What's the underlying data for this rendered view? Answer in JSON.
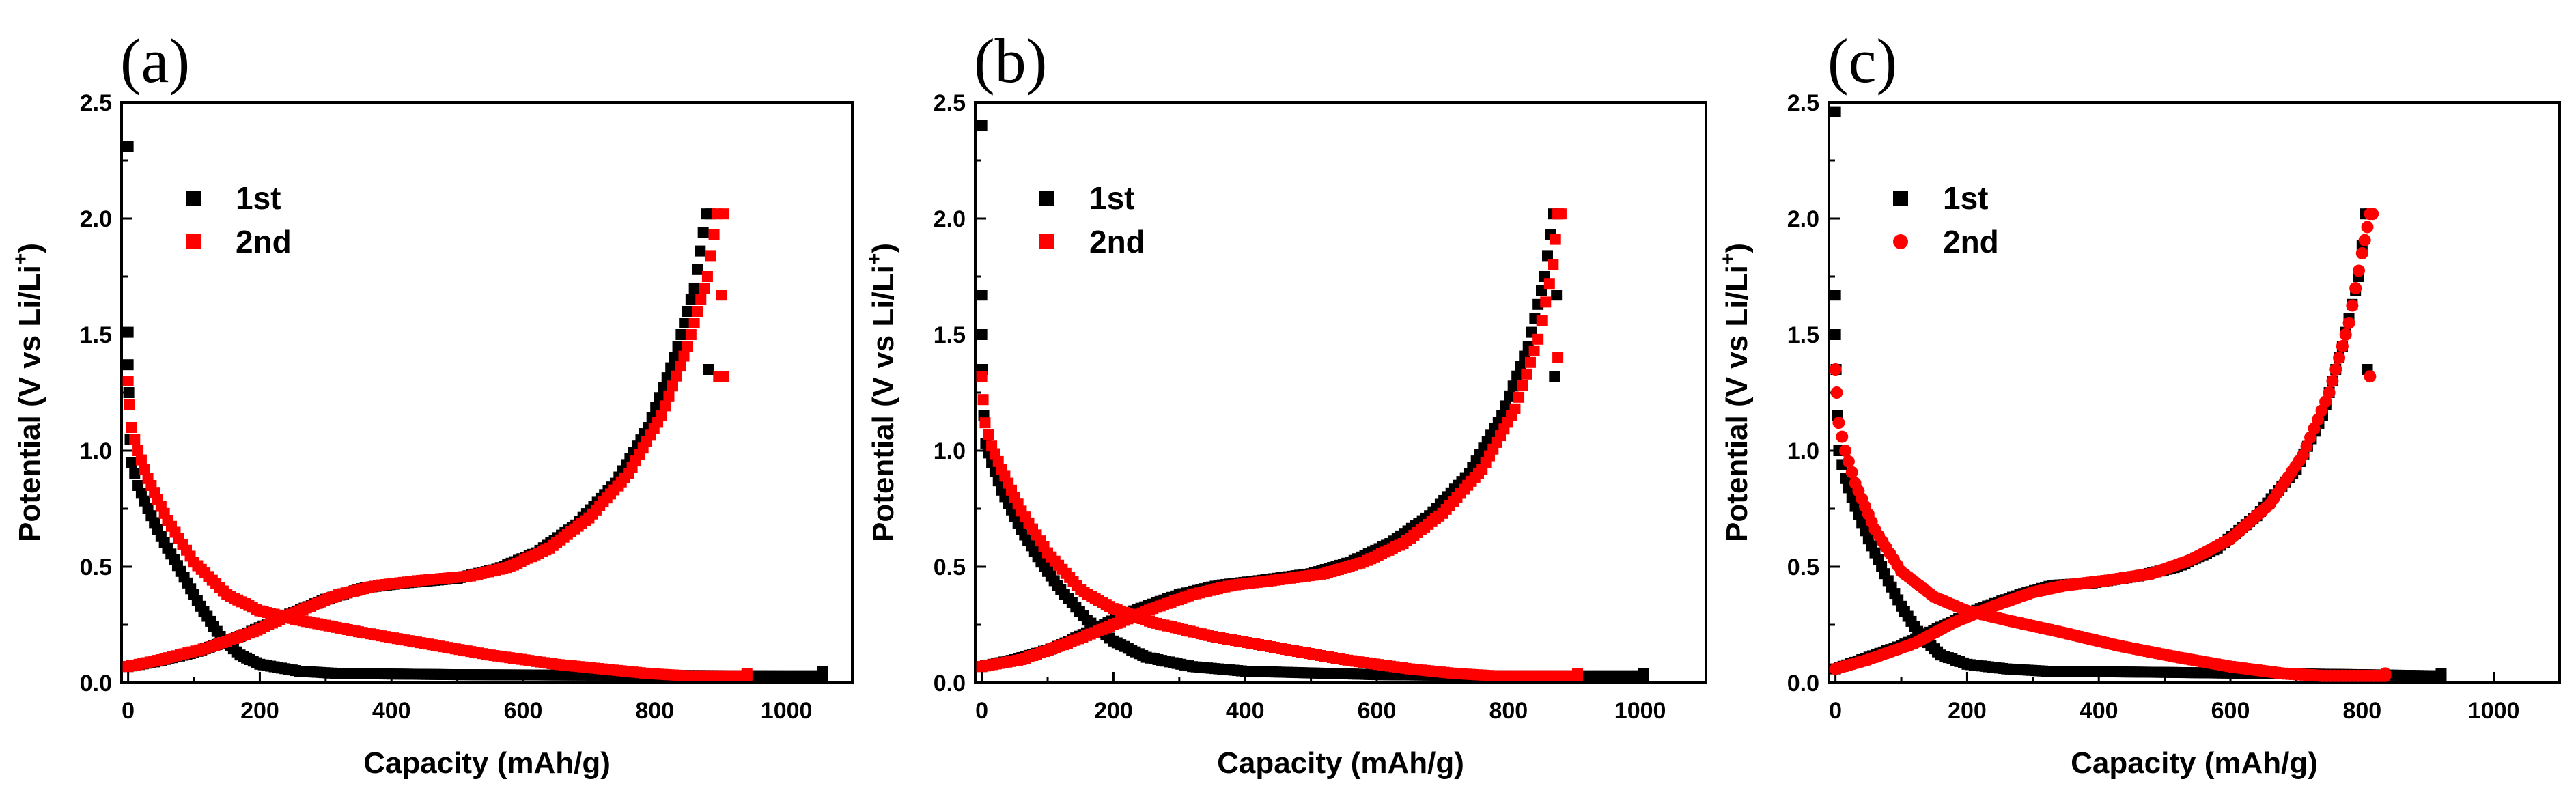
{
  "chart_data": [
    {
      "type": "scatter",
      "panel_label": "(a)",
      "xlabel": "Capacity (mAh/g)",
      "ylabel": {
        "main": "Potential (V vs Li/Li",
        "sup": "+",
        "close": ")"
      },
      "xlim": [
        -10,
        1100
      ],
      "ylim": [
        0,
        2.5
      ],
      "xticks": [
        "0",
        "200",
        "400",
        "600",
        "800",
        "1000"
      ],
      "yticks": [
        "0.0",
        "0.5",
        "1.0",
        "1.5",
        "2.0",
        "2.5"
      ],
      "legend_position": "top-left",
      "series": [
        {
          "name": "1st",
          "color": "#000000",
          "marker": "square",
          "discharge": [
            [
              0,
              2.31
            ],
            [
              0,
              1.51
            ],
            [
              0,
              1.37
            ],
            [
              1,
              1.25
            ],
            [
              3,
              1.05
            ],
            [
              5,
              0.95
            ],
            [
              15,
              0.85
            ],
            [
              30,
              0.75
            ],
            [
              50,
              0.63
            ],
            [
              80,
              0.48
            ],
            [
              110,
              0.33
            ],
            [
              140,
              0.2
            ],
            [
              170,
              0.12
            ],
            [
              200,
              0.08
            ],
            [
              260,
              0.05
            ],
            [
              320,
              0.04
            ],
            [
              500,
              0.035
            ],
            [
              800,
              0.032
            ],
            [
              1000,
              0.03
            ],
            [
              1055,
              0.03
            ],
            [
              1055,
              0.05
            ]
          ],
          "charge": [
            [
              0,
              0.07
            ],
            [
              40,
              0.09
            ],
            [
              100,
              0.13
            ],
            [
              170,
              0.2
            ],
            [
              240,
              0.29
            ],
            [
              300,
              0.36
            ],
            [
              360,
              0.41
            ],
            [
              420,
              0.43
            ],
            [
              500,
              0.45
            ],
            [
              560,
              0.49
            ],
            [
              620,
              0.56
            ],
            [
              680,
              0.68
            ],
            [
              740,
              0.86
            ],
            [
              790,
              1.1
            ],
            [
              830,
              1.4
            ],
            [
              860,
              1.7
            ],
            [
              878,
              2.02
            ],
            [
              882,
              1.35
            ],
            [
              885,
              2.02
            ]
          ]
        },
        {
          "name": "2nd",
          "color": "#ff0000",
          "marker": "square",
          "discharge": [
            [
              0,
              1.3
            ],
            [
              2,
              1.2
            ],
            [
              5,
              1.1
            ],
            [
              15,
              1.0
            ],
            [
              30,
              0.88
            ],
            [
              60,
              0.7
            ],
            [
              100,
              0.52
            ],
            [
              150,
              0.38
            ],
            [
              200,
              0.31
            ],
            [
              260,
              0.27
            ],
            [
              350,
              0.22
            ],
            [
              450,
              0.17
            ],
            [
              550,
              0.12
            ],
            [
              650,
              0.08
            ],
            [
              720,
              0.06
            ],
            [
              790,
              0.04
            ],
            [
              850,
              0.03
            ],
            [
              940,
              0.03
            ],
            [
              940,
              0.04
            ]
          ],
          "charge": [
            [
              0,
              0.07
            ],
            [
              50,
              0.1
            ],
            [
              120,
              0.15
            ],
            [
              190,
              0.22
            ],
            [
              260,
              0.31
            ],
            [
              320,
              0.38
            ],
            [
              380,
              0.42
            ],
            [
              440,
              0.44
            ],
            [
              520,
              0.46
            ],
            [
              580,
              0.5
            ],
            [
              640,
              0.58
            ],
            [
              700,
              0.71
            ],
            [
              760,
              0.9
            ],
            [
              810,
              1.15
            ],
            [
              850,
              1.45
            ],
            [
              880,
              1.75
            ],
            [
              895,
              2.02
            ],
            [
              897,
              1.32
            ],
            [
              905,
              2.02
            ],
            [
              905,
              1.32
            ]
          ]
        }
      ]
    },
    {
      "type": "scatter",
      "panel_label": "(b)",
      "xlabel": "Capacity (mAh/g)",
      "ylabel": {
        "main": "Potential (V vs Li/Li",
        "sup": "+",
        "close": ")"
      },
      "xlim": [
        -10,
        1100
      ],
      "ylim": [
        0,
        2.5
      ],
      "xticks": [
        "0",
        "200",
        "400",
        "600",
        "800",
        "1000"
      ],
      "yticks": [
        "0.0",
        "0.5",
        "1.0",
        "1.5",
        "2.0",
        "2.5"
      ],
      "legend_position": "top-left",
      "series": [
        {
          "name": "1st",
          "color": "#000000",
          "marker": "square",
          "discharge": [
            [
              0,
              2.4
            ],
            [
              0,
              1.67
            ],
            [
              0,
              1.5
            ],
            [
              1,
              1.35
            ],
            [
              3,
              1.15
            ],
            [
              6,
              1.03
            ],
            [
              15,
              0.95
            ],
            [
              30,
              0.83
            ],
            [
              60,
              0.66
            ],
            [
              90,
              0.52
            ],
            [
              120,
              0.4
            ],
            [
              160,
              0.27
            ],
            [
              200,
              0.18
            ],
            [
              250,
              0.11
            ],
            [
              320,
              0.07
            ],
            [
              400,
              0.05
            ],
            [
              600,
              0.035
            ],
            [
              800,
              0.03
            ],
            [
              1005,
              0.03
            ],
            [
              1005,
              0.04
            ]
          ],
          "charge": [
            [
              0,
              0.07
            ],
            [
              50,
              0.1
            ],
            [
              110,
              0.15
            ],
            [
              170,
              0.23
            ],
            [
              230,
              0.31
            ],
            [
              300,
              0.38
            ],
            [
              360,
              0.42
            ],
            [
              420,
              0.44
            ],
            [
              500,
              0.47
            ],
            [
              560,
              0.52
            ],
            [
              620,
              0.6
            ],
            [
              680,
              0.72
            ],
            [
              740,
              0.9
            ],
            [
              790,
              1.15
            ],
            [
              830,
              1.45
            ],
            [
              855,
              1.75
            ],
            [
              868,
              2.02
            ],
            [
              870,
              1.32
            ],
            [
              876,
              2.02
            ]
          ]
        },
        {
          "name": "2nd",
          "color": "#ff0000",
          "marker": "square",
          "discharge": [
            [
              0,
              1.32
            ],
            [
              2,
              1.22
            ],
            [
              5,
              1.12
            ],
            [
              15,
              1.02
            ],
            [
              30,
              0.92
            ],
            [
              60,
              0.74
            ],
            [
              100,
              0.56
            ],
            [
              150,
              0.4
            ],
            [
              200,
              0.32
            ],
            [
              260,
              0.26
            ],
            [
              350,
              0.2
            ],
            [
              450,
              0.15
            ],
            [
              550,
              0.1
            ],
            [
              650,
              0.06
            ],
            [
              720,
              0.04
            ],
            [
              780,
              0.03
            ],
            [
              860,
              0.03
            ],
            [
              905,
              0.03
            ],
            [
              905,
              0.04
            ]
          ],
          "charge": [
            [
              0,
              0.07
            ],
            [
              60,
              0.1
            ],
            [
              130,
              0.17
            ],
            [
              200,
              0.25
            ],
            [
              260,
              0.32
            ],
            [
              320,
              0.38
            ],
            [
              380,
              0.42
            ],
            [
              440,
              0.44
            ],
            [
              520,
              0.47
            ],
            [
              580,
              0.52
            ],
            [
              640,
              0.6
            ],
            [
              700,
              0.73
            ],
            [
              760,
              0.92
            ],
            [
              810,
              1.18
            ],
            [
              845,
              1.48
            ],
            [
              868,
              1.8
            ],
            [
              875,
              2.02
            ],
            [
              875,
              1.4
            ],
            [
              880,
              2.02
            ]
          ]
        }
      ]
    },
    {
      "type": "scatter",
      "panel_label": "(c)",
      "xlabel": "Capacity (mAh/g)",
      "ylabel": {
        "main": "Potential (V vs Li/Li",
        "sup": "+",
        "close": ")"
      },
      "xlim": [
        -10,
        1100
      ],
      "ylim": [
        0,
        2.5
      ],
      "xticks": [
        "0",
        "200",
        "400",
        "600",
        "800",
        "1000"
      ],
      "yticks": [
        "0.0",
        "0.5",
        "1.0",
        "1.5",
        "2.0",
        "2.5"
      ],
      "legend_position": "top-left",
      "series": [
        {
          "name": "1st",
          "color": "#000000",
          "marker": "square",
          "discharge": [
            [
              0,
              2.46
            ],
            [
              0,
              1.67
            ],
            [
              0,
              1.5
            ],
            [
              1,
              1.35
            ],
            [
              3,
              1.15
            ],
            [
              5,
              1.0
            ],
            [
              15,
              0.88
            ],
            [
              30,
              0.76
            ],
            [
              50,
              0.62
            ],
            [
              80,
              0.44
            ],
            [
              100,
              0.33
            ],
            [
              130,
              0.2
            ],
            [
              160,
              0.12
            ],
            [
              200,
              0.08
            ],
            [
              260,
              0.06
            ],
            [
              320,
              0.05
            ],
            [
              500,
              0.045
            ],
            [
              800,
              0.035
            ],
            [
              920,
              0.03
            ],
            [
              920,
              0.04
            ]
          ],
          "charge": [
            [
              0,
              0.06
            ],
            [
              40,
              0.1
            ],
            [
              100,
              0.16
            ],
            [
              160,
              0.24
            ],
            [
              220,
              0.32
            ],
            [
              280,
              0.38
            ],
            [
              330,
              0.42
            ],
            [
              390,
              0.43
            ],
            [
              460,
              0.46
            ],
            [
              520,
              0.5
            ],
            [
              580,
              0.58
            ],
            [
              640,
              0.72
            ],
            [
              700,
              0.92
            ],
            [
              740,
              1.15
            ],
            [
              770,
              1.45
            ],
            [
              795,
              1.75
            ],
            [
              805,
              2.02
            ],
            [
              808,
              1.35
            ],
            [
              812,
              2.02
            ]
          ]
        },
        {
          "name": "2nd",
          "color": "#ff0000",
          "marker": "circle",
          "discharge": [
            [
              0,
              1.35
            ],
            [
              2,
              1.25
            ],
            [
              5,
              1.12
            ],
            [
              15,
              1.0
            ],
            [
              30,
              0.86
            ],
            [
              60,
              0.66
            ],
            [
              100,
              0.48
            ],
            [
              150,
              0.37
            ],
            [
              200,
              0.31
            ],
            [
              260,
              0.27
            ],
            [
              340,
              0.22
            ],
            [
              430,
              0.16
            ],
            [
              520,
              0.11
            ],
            [
              600,
              0.07
            ],
            [
              680,
              0.04
            ],
            [
              740,
              0.03
            ],
            [
              800,
              0.03
            ],
            [
              835,
              0.03
            ],
            [
              835,
              0.04
            ]
          ],
          "charge": [
            [
              0,
              0.06
            ],
            [
              50,
              0.1
            ],
            [
              120,
              0.17
            ],
            [
              180,
              0.26
            ],
            [
              240,
              0.33
            ],
            [
              300,
              0.39
            ],
            [
              350,
              0.42
            ],
            [
              410,
              0.44
            ],
            [
              480,
              0.47
            ],
            [
              540,
              0.53
            ],
            [
              600,
              0.62
            ],
            [
              660,
              0.77
            ],
            [
              710,
              0.98
            ],
            [
              750,
              1.25
            ],
            [
              780,
              1.55
            ],
            [
              800,
              1.85
            ],
            [
              812,
              2.02
            ],
            [
              812,
              1.32
            ],
            [
              816,
              2.02
            ]
          ]
        }
      ]
    }
  ]
}
